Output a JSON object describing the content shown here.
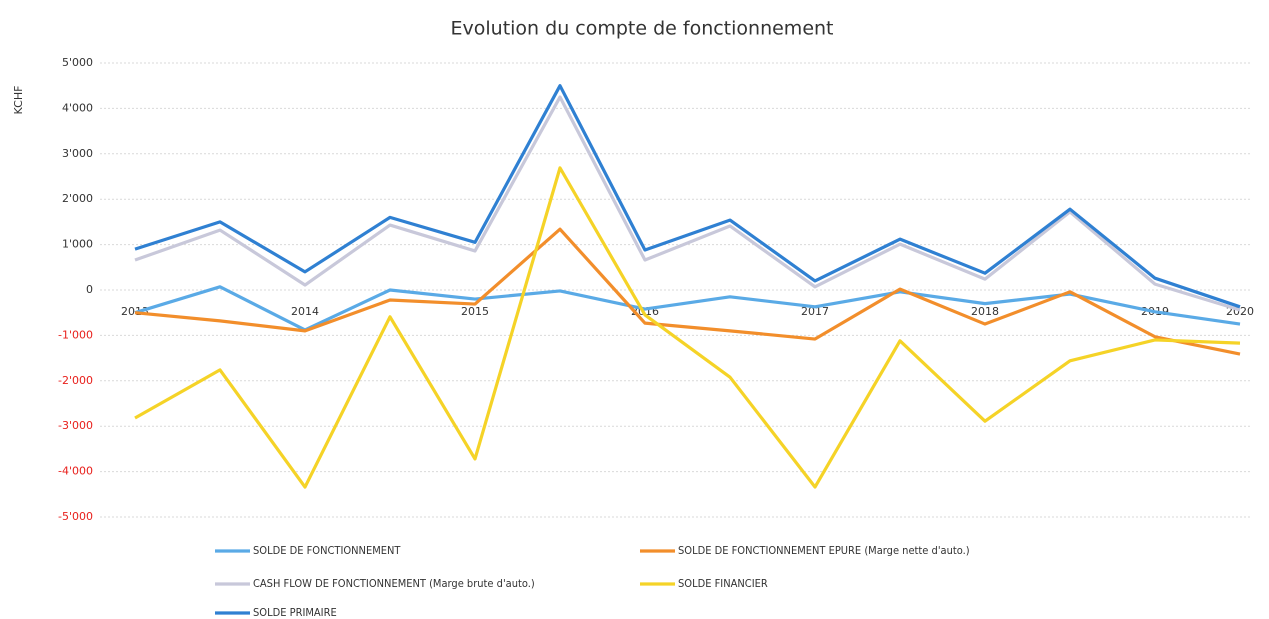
{
  "chart_data": {
    "type": "line",
    "title": "Evolution du compte de fonctionnement",
    "y_label": "KCHF",
    "categories": [
      "2013",
      null,
      "2014",
      null,
      "2015",
      null,
      "2016",
      null,
      "2017",
      null,
      "2018",
      null,
      "2019",
      "2020"
    ],
    "ylim": [
      -5000,
      5000
    ],
    "yticks": [
      {
        "value": -5000,
        "label": "-5'000"
      },
      {
        "value": -4000,
        "label": "-4'000"
      },
      {
        "value": -3000,
        "label": "-3'000"
      },
      {
        "value": -2000,
        "label": "-2'000"
      },
      {
        "value": -1000,
        "label": "-1'000"
      },
      0,
      {
        "value": 1000,
        "label": "1'000"
      },
      {
        "value": 2000,
        "label": "2'000"
      },
      {
        "value": 3000,
        "label": "3'000"
      },
      {
        "value": 4000,
        "label": "4'000"
      },
      {
        "value": 5000,
        "label": "5'000"
      }
    ],
    "grid": true,
    "negative_tick_color": "#e8201c",
    "legend": "bottom",
    "series": [
      {
        "name": "SOLDE DE FONCTIONNEMENT",
        "color": "#5aaae6",
        "values": [
          -500,
          70,
          -880,
          0,
          -200,
          -20,
          -420,
          -150,
          -370,
          -40,
          -300,
          -90,
          -480,
          -750
        ]
      },
      {
        "name": "SOLDE DE FONCTIONNEMENT EPURE (Marge nette d'auto.)",
        "color": "#f28e2b",
        "values": [
          -500,
          -680,
          -900,
          -220,
          -310,
          1340,
          -730,
          -900,
          -1080,
          20,
          -750,
          -40,
          -1030,
          -1410
        ]
      },
      {
        "name": "CASH FLOW DE FONCTIONNEMENT (Marge brute d'auto.)",
        "color": "#c8c8da",
        "values": [
          660,
          1320,
          110,
          1430,
          860,
          4250,
          660,
          1410,
          70,
          1010,
          240,
          1720,
          130,
          -440
        ]
      },
      {
        "name": "SOLDE FINANCIER",
        "color": "#f5d327",
        "values": [
          -2820,
          -1760,
          -4340,
          -590,
          -3720,
          2690,
          -550,
          -1920,
          -4340,
          -1120,
          -2890,
          -1560,
          -1100,
          -1170
        ]
      },
      {
        "name": "SOLDE PRIMAIRE",
        "color": "#2f80d2",
        "values": [
          900,
          1500,
          400,
          1600,
          1050,
          4500,
          880,
          1540,
          200,
          1120,
          370,
          1780,
          260,
          -370
        ]
      }
    ]
  }
}
